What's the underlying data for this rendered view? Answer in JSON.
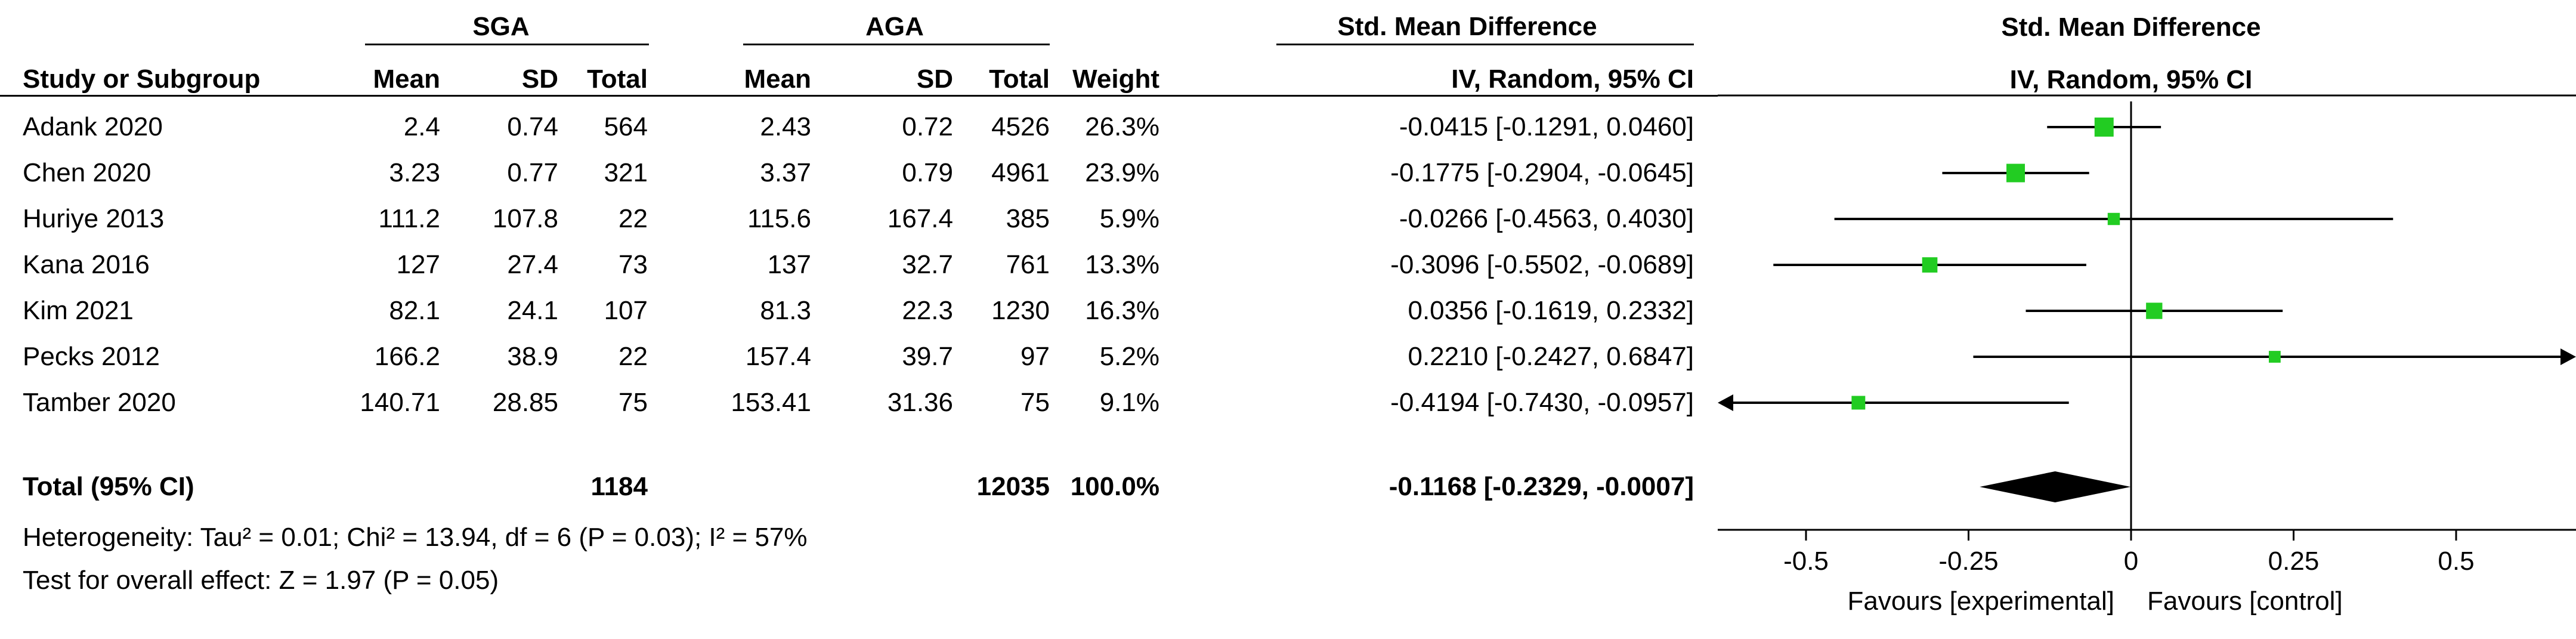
{
  "headers": {
    "group1": "SGA",
    "group2": "AGA",
    "effect_table": "Std. Mean Difference",
    "effect_plot": "Std. Mean Difference",
    "study": "Study or Subgroup",
    "mean1": "Mean",
    "sd1": "SD",
    "total1": "Total",
    "mean2": "Mean",
    "sd2": "SD",
    "total2": "Total",
    "weight": "Weight",
    "method_table": "IV, Random, 95% CI",
    "method_plot": "IV, Random, 95% CI"
  },
  "studies": [
    {
      "name": "Adank 2020",
      "mean1": "2.4",
      "sd1": "0.74",
      "total1": "564",
      "mean2": "2.43",
      "sd2": "0.72",
      "total2": "4526",
      "weight": "26.3%",
      "ci_text": "-0.0415 [-0.1291, 0.0460]"
    },
    {
      "name": "Chen 2020",
      "mean1": "3.23",
      "sd1": "0.77",
      "total1": "321",
      "mean2": "3.37",
      "sd2": "0.79",
      "total2": "4961",
      "weight": "23.9%",
      "ci_text": "-0.1775 [-0.2904, -0.0645]"
    },
    {
      "name": "Huriye 2013",
      "mean1": "111.2",
      "sd1": "107.8",
      "total1": "22",
      "mean2": "115.6",
      "sd2": "167.4",
      "total2": "385",
      "weight": "5.9%",
      "ci_text": "-0.0266 [-0.4563, 0.4030]"
    },
    {
      "name": "Kana 2016",
      "mean1": "127",
      "sd1": "27.4",
      "total1": "73",
      "mean2": "137",
      "sd2": "32.7",
      "total2": "761",
      "weight": "13.3%",
      "ci_text": "-0.3096 [-0.5502, -0.0689]"
    },
    {
      "name": "Kim 2021",
      "mean1": "82.1",
      "sd1": "24.1",
      "total1": "107",
      "mean2": "81.3",
      "sd2": "22.3",
      "total2": "1230",
      "weight": "16.3%",
      "ci_text": "0.0356 [-0.1619, 0.2332]"
    },
    {
      "name": "Pecks 2012",
      "mean1": "166.2",
      "sd1": "38.9",
      "total1": "22",
      "mean2": "157.4",
      "sd2": "39.7",
      "total2": "97",
      "weight": "5.2%",
      "ci_text": "0.2210 [-0.2427, 0.6847]"
    },
    {
      "name": "Tamber 2020",
      "mean1": "140.71",
      "sd1": "28.85",
      "total1": "75",
      "mean2": "153.41",
      "sd2": "31.36",
      "total2": "75",
      "weight": "9.1%",
      "ci_text": "-0.4194 [-0.7430, -0.0957]"
    }
  ],
  "total": {
    "label": "Total (95% CI)",
    "total1": "1184",
    "total2": "12035",
    "weight": "100.0%",
    "ci_text": "-0.1168 [-0.2329, -0.0007]"
  },
  "heterogeneity": "Heterogeneity: Tau² = 0.01; Chi² = 13.94, df = 6 (P = 0.03); I² = 57%",
  "overall_effect": "Test for overall effect: Z = 1.97 (P = 0.05)",
  "colors": {
    "marker": "#22cc22",
    "line": "#000000",
    "diamond": "#000000"
  },
  "chart_data": {
    "type": "forest",
    "xlim": [
      -0.6,
      0.6
    ],
    "ticks": [
      -0.5,
      -0.25,
      0,
      0.25,
      0.5
    ],
    "tick_labels": [
      "-0.5",
      "-0.25",
      "0",
      "0.25",
      "0.5"
    ],
    "xlabel_left": "Favours [experimental]",
    "xlabel_right": "Favours [control]",
    "series": [
      {
        "study": "Adank 2020",
        "est": -0.0415,
        "lo": -0.1291,
        "hi": 0.046,
        "weight": 26.3
      },
      {
        "study": "Chen 2020",
        "est": -0.1775,
        "lo": -0.2904,
        "hi": -0.0645,
        "weight": 23.9
      },
      {
        "study": "Huriye 2013",
        "est": -0.0266,
        "lo": -0.4563,
        "hi": 0.403,
        "weight": 5.9
      },
      {
        "study": "Kana 2016",
        "est": -0.3096,
        "lo": -0.5502,
        "hi": -0.0689,
        "weight": 13.3
      },
      {
        "study": "Kim 2021",
        "est": 0.0356,
        "lo": -0.1619,
        "hi": 0.2332,
        "weight": 16.3
      },
      {
        "study": "Pecks 2012",
        "est": 0.221,
        "lo": -0.2427,
        "hi": 0.6847,
        "weight": 5.2
      },
      {
        "study": "Tamber 2020",
        "est": -0.4194,
        "lo": -0.743,
        "hi": -0.0957,
        "weight": 9.1
      }
    ],
    "pooled": {
      "est": -0.1168,
      "lo": -0.2329,
      "hi": -0.0007
    }
  }
}
